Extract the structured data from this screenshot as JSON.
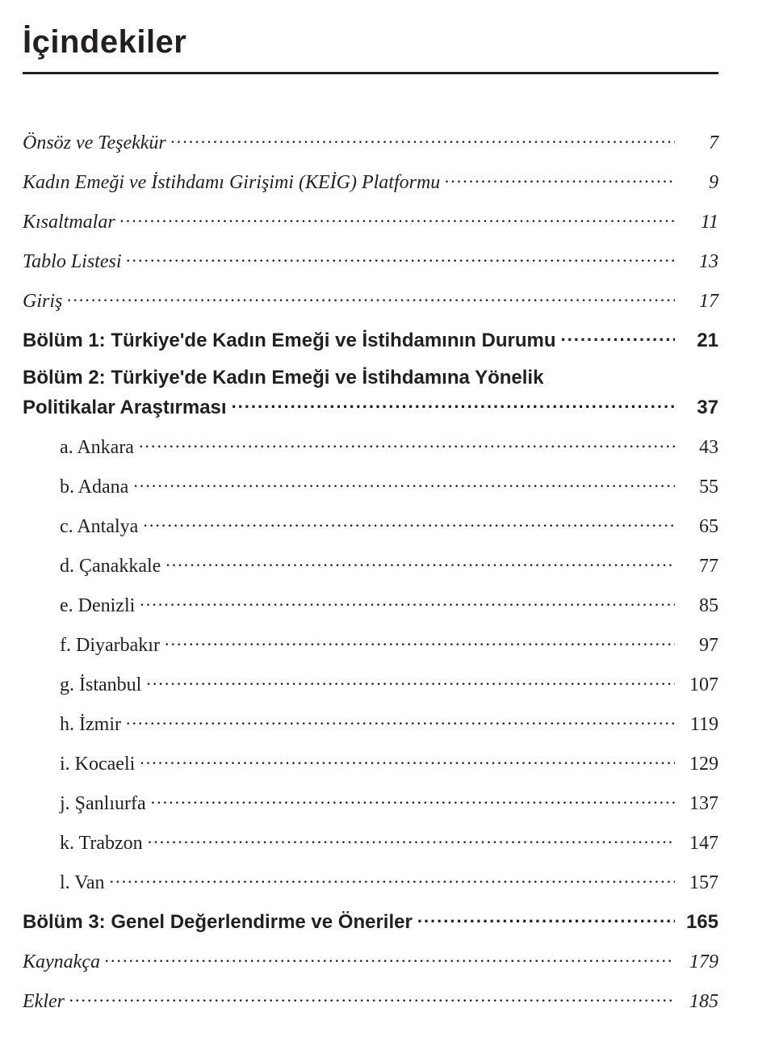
{
  "title": "İçindekiler",
  "entries": [
    {
      "label": "Önsöz ve Teşekkür",
      "page": "7",
      "style": "italic"
    },
    {
      "label": "Kadın Emeği ve İstihdamı Girişimi (KEİG) Platformu",
      "page": "9",
      "style": "italic"
    },
    {
      "label": "Kısaltmalar",
      "page": "11",
      "style": "italic"
    },
    {
      "label": "Tablo Listesi",
      "page": "13",
      "style": "italic"
    },
    {
      "label": "Giriş",
      "page": "17",
      "style": "italic"
    },
    {
      "label": "Bölüm 1: Türkiye'de Kadın Emeği ve İstihdamının Durumu",
      "page": "21",
      "style": "bold"
    },
    {
      "label_l1": "Bölüm 2: Türkiye'de Kadın Emeği ve İstihdamına Yönelik",
      "label_l2": "Politikalar Araştırması",
      "page": "37",
      "style": "bold",
      "multiline": true
    },
    {
      "label": "a. Ankara",
      "page": "43",
      "style": "serif",
      "indent": true
    },
    {
      "label": "b. Adana",
      "page": "55",
      "style": "serif",
      "indent": true
    },
    {
      "label": "c. Antalya",
      "page": "65",
      "style": "serif",
      "indent": true
    },
    {
      "label": "d. Çanakkale",
      "page": "77",
      "style": "serif",
      "indent": true
    },
    {
      "label": "e. Denizli",
      "page": "85",
      "style": "serif",
      "indent": true
    },
    {
      "label": "f. Diyarbakır",
      "page": "97",
      "style": "serif",
      "indent": true
    },
    {
      "label": "g. İstanbul",
      "page": "107",
      "style": "serif",
      "indent": true
    },
    {
      "label": "h. İzmir",
      "page": "119",
      "style": "serif",
      "indent": true
    },
    {
      "label": "i. Kocaeli",
      "page": "129",
      "style": "serif",
      "indent": true
    },
    {
      "label": "j. Şanlıurfa",
      "page": "137",
      "style": "serif",
      "indent": true
    },
    {
      "label": "k. Trabzon",
      "page": "147",
      "style": "serif",
      "indent": true
    },
    {
      "label": "l. Van",
      "page": "157",
      "style": "serif",
      "indent": true
    },
    {
      "label": "Bölüm 3: Genel Değerlendirme ve Öneriler",
      "page": "165",
      "style": "bold"
    },
    {
      "label": "Kaynakça",
      "page": "179",
      "style": "italic"
    },
    {
      "label": "Ekler",
      "page": "185",
      "style": "italic"
    }
  ],
  "typography": {
    "title_fontsize": 40,
    "entry_fontsize": 24,
    "text_color": "#231f20",
    "rule_color": "#231f20",
    "background": "#ffffff"
  }
}
